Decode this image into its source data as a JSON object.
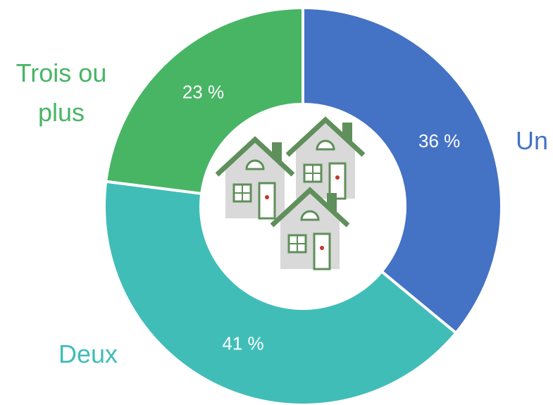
{
  "chart_data": {
    "type": "donut",
    "categories": [
      "Un",
      "Deux",
      "Trois ou plus"
    ],
    "values": [
      36,
      41,
      23
    ],
    "value_labels": [
      "36 %",
      "41 %",
      "23 %"
    ],
    "colors": [
      "#4472c4",
      "#41bdb8",
      "#48b565"
    ]
  }
}
